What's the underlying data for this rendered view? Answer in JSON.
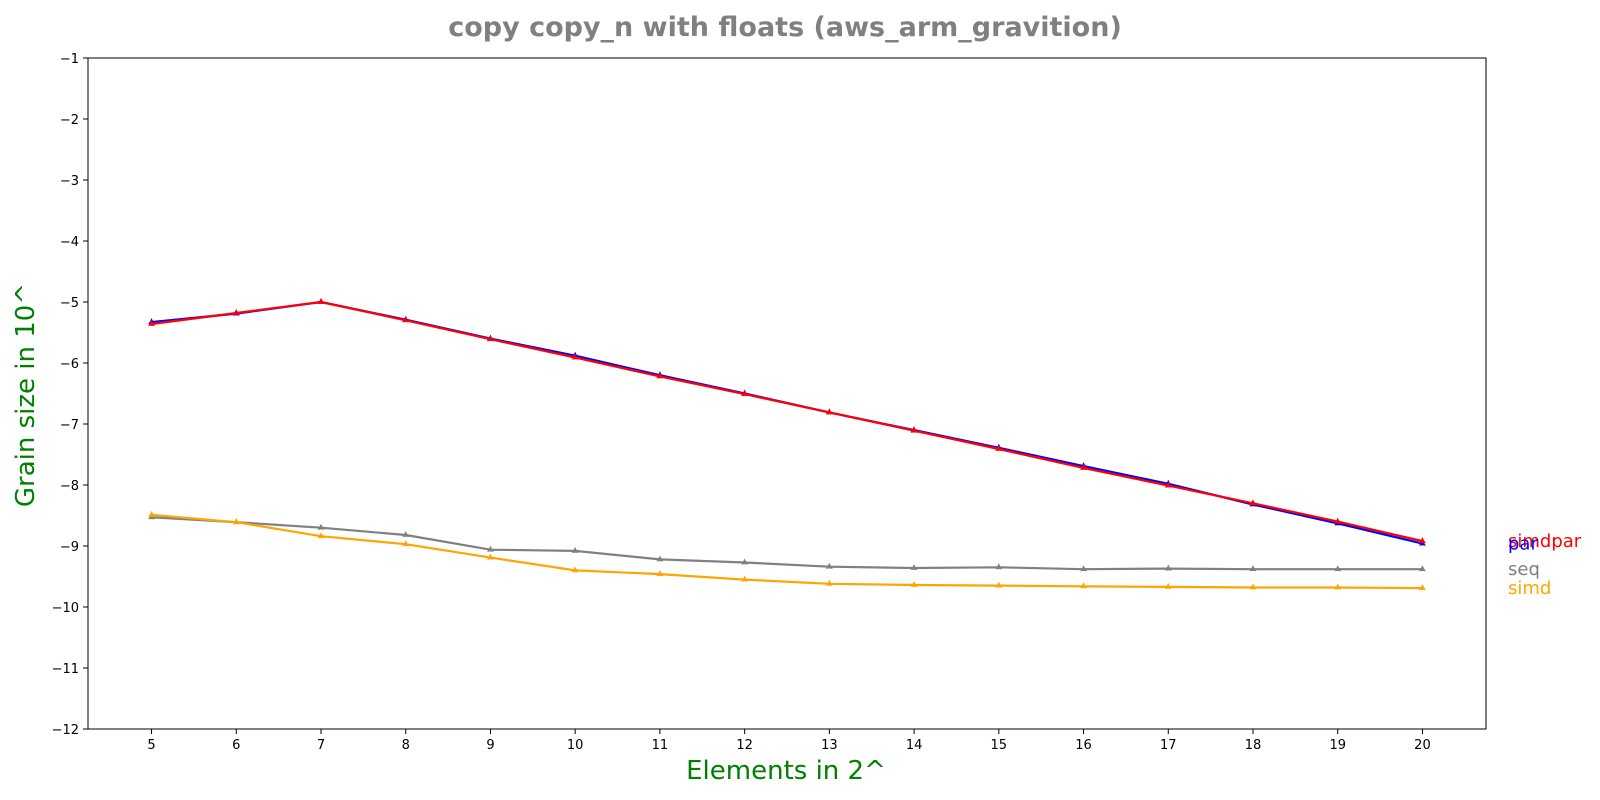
{
  "chart_data": {
    "type": "line",
    "title": "copy copy_n with floats  (aws_arm_gravition)",
    "xlabel": "Elements in 2^",
    "ylabel": "Grain size in 10^",
    "x": [
      5,
      6,
      7,
      8,
      9,
      10,
      11,
      12,
      13,
      14,
      15,
      16,
      17,
      18,
      19,
      20
    ],
    "xlim": [
      4.25,
      20.75
    ],
    "ylim": [
      -12,
      -1
    ],
    "yticks": [
      -1,
      -2,
      -3,
      -4,
      -5,
      -6,
      -7,
      -8,
      -9,
      -10,
      -11,
      -12
    ],
    "ytick_labels": [
      "−1",
      "−2",
      "−3",
      "−4",
      "−5",
      "−6",
      "−7",
      "−8",
      "−9",
      "−10",
      "−11",
      "−12"
    ],
    "grid": false,
    "legend_placement": "right (labels at line ends)",
    "title_color": "#808080",
    "label_color": "#008000",
    "series": [
      {
        "name": "par",
        "color": "#0000ff",
        "values": [
          -5.33,
          -5.19,
          -5.0,
          -5.29,
          -5.6,
          -5.88,
          -6.2,
          -6.5,
          -6.81,
          -7.1,
          -7.39,
          -7.69,
          -7.98,
          -8.32,
          -8.63,
          -8.96
        ]
      },
      {
        "name": "simdpar",
        "color": "#ff0000",
        "values": [
          -5.36,
          -5.18,
          -5.0,
          -5.3,
          -5.61,
          -5.91,
          -6.22,
          -6.51,
          -6.81,
          -7.11,
          -7.41,
          -7.72,
          -8.01,
          -8.3,
          -8.6,
          -8.92
        ]
      },
      {
        "name": "seq",
        "color": "#808080",
        "values": [
          -8.53,
          -8.61,
          -8.7,
          -8.82,
          -9.06,
          -9.08,
          -9.22,
          -9.27,
          -9.34,
          -9.36,
          -9.35,
          -9.38,
          -9.37,
          -9.38,
          -9.38,
          -9.38
        ]
      },
      {
        "name": "simd",
        "color": "#ffa500",
        "values": [
          -8.49,
          -8.61,
          -8.84,
          -8.97,
          -9.19,
          -9.4,
          -9.46,
          -9.55,
          -9.62,
          -9.64,
          -9.65,
          -9.66,
          -9.67,
          -9.68,
          -9.68,
          -9.69
        ]
      }
    ],
    "end_labels": [
      {
        "name": "simdpar",
        "color": "#ff0000"
      },
      {
        "name": "par",
        "color": "#0000ff"
      },
      {
        "name": "seq",
        "color": "#808080"
      },
      {
        "name": "simd",
        "color": "#ffa500"
      }
    ]
  }
}
